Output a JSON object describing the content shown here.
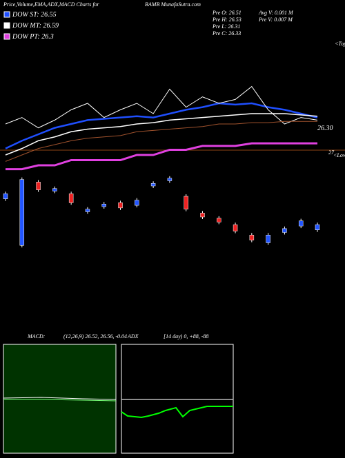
{
  "chart_data": {
    "type": "candlestick",
    "title": "Price,Volume,EMA,ADX,MACD Charts for",
    "subtitle": "BAMB MunafaSutra.com",
    "stats": [
      "Pre  O: 26.51",
      "Pre  H: 26.53",
      "Pre  L: 26.31",
      "Pre  C: 26.33",
      "Avg V: 0.001 M",
      "Pre  V: 0.007 M"
    ],
    "annotations": [
      "<Tops",
      "<Lows",
      "26.30",
      "27"
    ],
    "ylim": [
      25.6,
      27.2
    ],
    "series": [
      {
        "name": "DOW ST: 26.55",
        "color": "#1f4fff",
        "values": [
          26.37,
          26.43,
          26.48,
          26.53,
          26.56,
          26.59,
          26.6,
          26.61,
          26.62,
          26.61,
          26.64,
          26.67,
          26.69,
          26.72,
          26.71,
          26.72,
          26.69,
          26.67,
          26.64,
          26.61
        ]
      },
      {
        "name": "DOW MT: 26.59",
        "color": "#ffffff",
        "values": [
          26.32,
          26.37,
          26.43,
          26.46,
          26.5,
          26.52,
          26.53,
          26.54,
          26.56,
          26.57,
          26.59,
          26.6,
          26.61,
          26.62,
          26.63,
          26.64,
          26.64,
          26.64,
          26.63,
          26.62
        ]
      },
      {
        "name": "DOW PT: 26.3",
        "color": "#e040e0",
        "values": [
          26.21,
          26.21,
          26.24,
          26.24,
          26.28,
          26.28,
          26.28,
          26.28,
          26.32,
          26.32,
          26.36,
          26.36,
          26.39,
          26.39,
          26.39,
          26.41,
          26.41,
          26.41,
          26.41,
          26.41
        ]
      },
      {
        "color": "#ffffff",
        "values": [
          26.56,
          26.61,
          26.53,
          26.59,
          26.67,
          26.72,
          26.61,
          26.67,
          26.72,
          26.64,
          26.83,
          26.69,
          26.77,
          26.72,
          26.75,
          26.85,
          26.67,
          26.56,
          26.61,
          26.59
        ]
      },
      {
        "color": "#a0522d",
        "values": [
          26.27,
          26.32,
          26.37,
          26.4,
          26.43,
          26.45,
          26.46,
          26.47,
          26.5,
          26.51,
          26.52,
          26.53,
          26.54,
          26.56,
          26.56,
          26.57,
          26.57,
          26.58,
          26.58,
          26.58
        ]
      }
    ],
    "open": [
      25.98,
      25.62,
      26.11,
      26.04,
      26.02,
      25.88,
      25.92,
      25.95,
      25.93,
      26.08,
      26.12,
      26.0,
      25.87,
      25.83,
      25.78,
      25.7,
      25.64,
      25.72,
      25.77,
      25.74
    ],
    "close": [
      26.02,
      26.13,
      26.05,
      26.06,
      25.95,
      25.9,
      25.94,
      25.91,
      25.97,
      26.1,
      26.14,
      25.9,
      25.84,
      25.8,
      25.73,
      25.66,
      25.7,
      25.75,
      25.81,
      25.78
    ],
    "indicators": {
      "macd_label": "MACD:",
      "macd_values": "(12,26,9) 26.52, 26.56, -0.04",
      "adx_label": "ADX",
      "adx_values": "[14 day) 0, +88, -88"
    }
  }
}
